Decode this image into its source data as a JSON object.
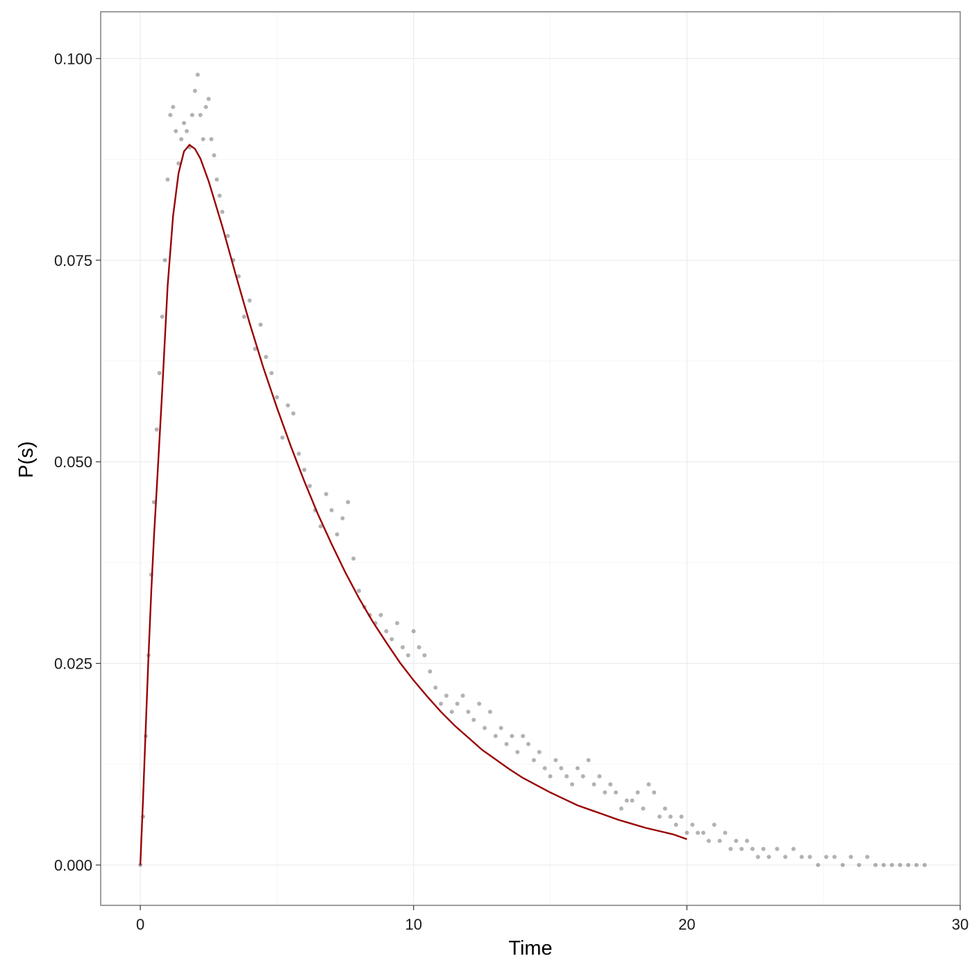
{
  "chart_data": {
    "type": "scatter",
    "title": "",
    "xlabel": "Time",
    "ylabel": "P(s)",
    "xlim": [
      -1.45,
      30.0
    ],
    "ylim": [
      -0.005,
      0.1058
    ],
    "x_ticks": [
      0,
      10,
      20,
      30
    ],
    "x_tick_labels": [
      "0",
      "10",
      "20",
      "30"
    ],
    "y_ticks": [
      0.0,
      0.025,
      0.05,
      0.075,
      0.1
    ],
    "y_tick_labels": [
      "0.000",
      "0.025",
      "0.050",
      "0.075",
      "0.100"
    ],
    "grid": true,
    "legend": "none",
    "colors": {
      "points": "#000000",
      "fit_line": "#990000",
      "panel_border": "#7f7f7f",
      "grid_major": "#ebebeb",
      "grid_minor": "#f5f5f5"
    },
    "series": [
      {
        "type": "scatter",
        "x": [
          0.0,
          0.1,
          0.2,
          0.3,
          0.4,
          0.5,
          0.6,
          0.7,
          0.8,
          0.9,
          1.0,
          1.1,
          1.2,
          1.3,
          1.4,
          1.5,
          1.6,
          1.7,
          1.8,
          1.9,
          2.0,
          2.1,
          2.2,
          2.3,
          2.4,
          2.5,
          2.6,
          2.7,
          2.8,
          2.9,
          3.0,
          3.2,
          3.4,
          3.6,
          3.8,
          4.0,
          4.2,
          4.4,
          4.6,
          4.8,
          5.0,
          5.2,
          5.4,
          5.6,
          5.8,
          6.0,
          6.2,
          6.4,
          6.6,
          6.8,
          7.0,
          7.2,
          7.4,
          7.6,
          7.8,
          8.0,
          8.2,
          8.4,
          8.6,
          8.8,
          9.0,
          9.2,
          9.4,
          9.6,
          9.8,
          10.0,
          10.2,
          10.4,
          10.6,
          10.8,
          11.0,
          11.2,
          11.4,
          11.6,
          11.8,
          12.0,
          12.2,
          12.4,
          12.6,
          12.8,
          13.0,
          13.2,
          13.4,
          13.6,
          13.8,
          14.0,
          14.2,
          14.4,
          14.6,
          14.8,
          15.0,
          15.2,
          15.4,
          15.6,
          15.8,
          16.0,
          16.2,
          16.4,
          16.6,
          16.8,
          17.0,
          17.2,
          17.4,
          17.6,
          17.8,
          18.0,
          18.2,
          18.4,
          18.6,
          18.8,
          19.0,
          19.2,
          19.4,
          19.6,
          19.8,
          20.0,
          20.2,
          20.4,
          20.6,
          20.8,
          21.0,
          21.2,
          21.4,
          21.6,
          21.8,
          22.0,
          22.2,
          22.4,
          22.6,
          22.8,
          23.0,
          23.3,
          23.6,
          23.9,
          24.2,
          24.5,
          24.8,
          25.1,
          25.4,
          25.7,
          26.0,
          26.3,
          26.6,
          26.9,
          27.2,
          27.5,
          27.8,
          28.1,
          28.4,
          28.7
        ],
        "y": [
          0.0,
          0.006,
          0.016,
          0.026,
          0.036,
          0.045,
          0.054,
          0.061,
          0.068,
          0.075,
          0.085,
          0.093,
          0.094,
          0.091,
          0.087,
          0.09,
          0.092,
          0.091,
          0.089,
          0.093,
          0.096,
          0.098,
          0.093,
          0.09,
          0.094,
          0.095,
          0.09,
          0.088,
          0.085,
          0.083,
          0.081,
          0.078,
          0.075,
          0.073,
          0.068,
          0.07,
          0.064,
          0.067,
          0.063,
          0.061,
          0.058,
          0.053,
          0.057,
          0.056,
          0.051,
          0.049,
          0.047,
          0.044,
          0.042,
          0.046,
          0.044,
          0.041,
          0.043,
          0.045,
          0.038,
          0.034,
          0.032,
          0.031,
          0.03,
          0.031,
          0.029,
          0.028,
          0.03,
          0.027,
          0.026,
          0.029,
          0.027,
          0.026,
          0.024,
          0.022,
          0.02,
          0.021,
          0.019,
          0.02,
          0.021,
          0.019,
          0.018,
          0.02,
          0.017,
          0.019,
          0.016,
          0.017,
          0.015,
          0.016,
          0.014,
          0.016,
          0.015,
          0.013,
          0.014,
          0.012,
          0.011,
          0.013,
          0.012,
          0.011,
          0.01,
          0.012,
          0.011,
          0.013,
          0.01,
          0.011,
          0.009,
          0.01,
          0.009,
          0.007,
          0.008,
          0.008,
          0.009,
          0.007,
          0.01,
          0.009,
          0.006,
          0.007,
          0.006,
          0.005,
          0.006,
          0.004,
          0.005,
          0.004,
          0.004,
          0.003,
          0.005,
          0.003,
          0.004,
          0.002,
          0.003,
          0.002,
          0.003,
          0.002,
          0.001,
          0.002,
          0.001,
          0.002,
          0.001,
          0.002,
          0.001,
          0.001,
          0.0,
          0.001,
          0.001,
          0.0,
          0.001,
          0.0,
          0.001,
          0.0,
          0.0,
          0.0,
          0.0,
          0.0,
          0.0,
          0.0
        ],
        "opacity": 0.3
      },
      {
        "type": "line",
        "x": [
          0.0,
          0.1,
          0.2,
          0.3,
          0.4,
          0.5,
          0.6,
          0.8,
          1.0,
          1.2,
          1.4,
          1.6,
          1.8,
          2.0,
          2.2,
          2.5,
          3.0,
          3.5,
          4.0,
          4.5,
          5.0,
          5.5,
          6.0,
          6.5,
          7.0,
          7.5,
          8.0,
          8.5,
          9.0,
          9.5,
          10.0,
          10.5,
          11.0,
          11.5,
          12.0,
          12.5,
          13.0,
          13.5,
          14.0,
          14.5,
          15.0,
          15.5,
          16.0,
          16.5,
          17.0,
          17.5,
          18.0,
          18.5,
          19.0,
          19.5,
          20.0
        ],
        "y": [
          0.0,
          0.0081,
          0.0171,
          0.0259,
          0.0338,
          0.0407,
          0.0466,
          0.0587,
          0.0718,
          0.0805,
          0.0858,
          0.0885,
          0.0893,
          0.0888,
          0.0876,
          0.0848,
          0.0792,
          0.0731,
          0.0672,
          0.0617,
          0.0567,
          0.052,
          0.0476,
          0.0435,
          0.0398,
          0.0363,
          0.0331,
          0.0302,
          0.0276,
          0.0251,
          0.0229,
          0.0209,
          0.019,
          0.0173,
          0.0158,
          0.0143,
          0.0131,
          0.0119,
          0.0108,
          0.0099,
          0.009,
          0.0082,
          0.0074,
          0.0068,
          0.0062,
          0.0056,
          0.0051,
          0.0046,
          0.0042,
          0.0038,
          0.0032
        ]
      }
    ]
  }
}
